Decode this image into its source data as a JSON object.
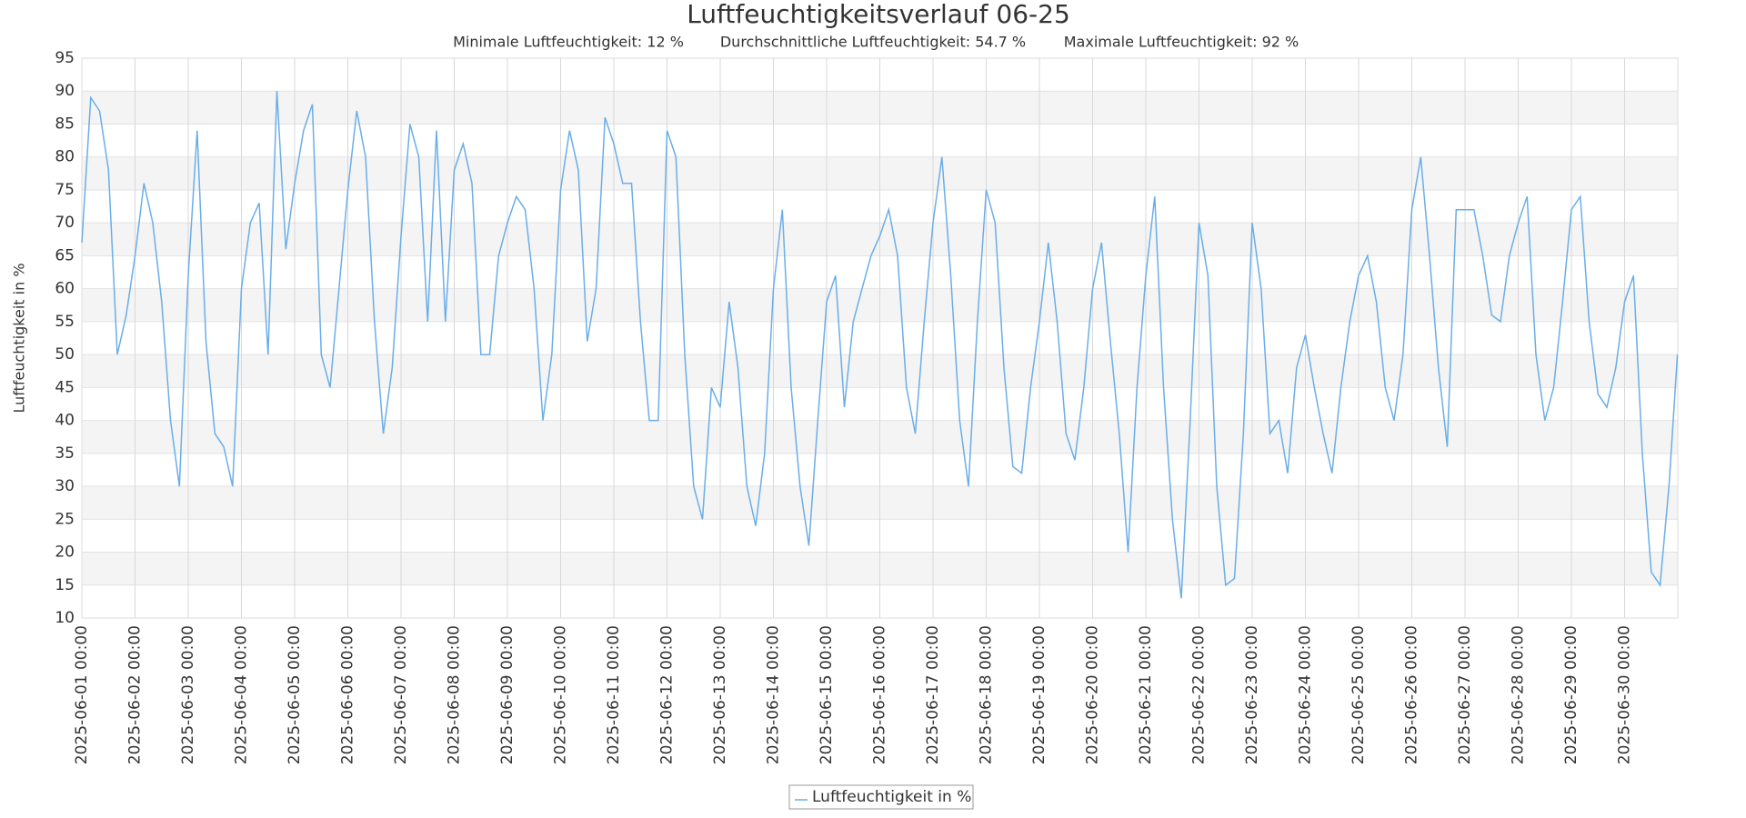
{
  "chart_data": {
    "type": "line",
    "title": "Luftfeuchtigkeitsverlauf 06-25",
    "subtitle": [
      "Minimale Luftfeuchtigkeit: 12 %",
      "Durchschnittliche Luftfeuchtigkeit: 54.7 %",
      "Maximale Luftfeuchtigkeit: 92 %"
    ],
    "y_label": "Luftfeuchtigkeit in %",
    "x": [
      "2025-06-01 00:00",
      "2025-06-01 04:00",
      "2025-06-01 08:00",
      "2025-06-01 12:00",
      "2025-06-01 16:00",
      "2025-06-01 20:00",
      "2025-06-02 00:00",
      "2025-06-02 04:00",
      "2025-06-02 08:00",
      "2025-06-02 12:00",
      "2025-06-02 16:00",
      "2025-06-02 20:00",
      "2025-06-03 00:00",
      "2025-06-03 04:00",
      "2025-06-03 08:00",
      "2025-06-03 12:00",
      "2025-06-03 16:00",
      "2025-06-03 20:00",
      "2025-06-04 00:00",
      "2025-06-04 04:00",
      "2025-06-04 08:00",
      "2025-06-04 12:00",
      "2025-06-04 16:00",
      "2025-06-04 20:00",
      "2025-06-05 00:00",
      "2025-06-05 04:00",
      "2025-06-05 08:00",
      "2025-06-05 12:00",
      "2025-06-05 16:00",
      "2025-06-05 20:00",
      "2025-06-06 00:00",
      "2025-06-06 04:00",
      "2025-06-06 08:00",
      "2025-06-06 12:00",
      "2025-06-06 16:00",
      "2025-06-06 20:00",
      "2025-06-07 00:00",
      "2025-06-07 04:00",
      "2025-06-07 08:00",
      "2025-06-07 12:00",
      "2025-06-07 16:00",
      "2025-06-07 20:00",
      "2025-06-08 00:00",
      "2025-06-08 04:00",
      "2025-06-08 08:00",
      "2025-06-08 12:00",
      "2025-06-08 16:00",
      "2025-06-08 20:00",
      "2025-06-09 00:00",
      "2025-06-09 04:00",
      "2025-06-09 08:00",
      "2025-06-09 12:00",
      "2025-06-09 16:00",
      "2025-06-09 20:00",
      "2025-06-10 00:00",
      "2025-06-10 04:00",
      "2025-06-10 08:00",
      "2025-06-10 12:00",
      "2025-06-10 16:00",
      "2025-06-10 20:00",
      "2025-06-11 00:00",
      "2025-06-11 04:00",
      "2025-06-11 08:00",
      "2025-06-11 12:00",
      "2025-06-11 16:00",
      "2025-06-11 20:00",
      "2025-06-12 00:00",
      "2025-06-12 04:00",
      "2025-06-12 08:00",
      "2025-06-12 12:00",
      "2025-06-12 16:00",
      "2025-06-12 20:00",
      "2025-06-13 00:00",
      "2025-06-13 04:00",
      "2025-06-13 08:00",
      "2025-06-13 12:00",
      "2025-06-13 16:00",
      "2025-06-13 20:00",
      "2025-06-14 00:00",
      "2025-06-14 04:00",
      "2025-06-14 08:00",
      "2025-06-14 12:00",
      "2025-06-14 16:00",
      "2025-06-14 20:00",
      "2025-06-15 00:00",
      "2025-06-15 04:00",
      "2025-06-15 08:00",
      "2025-06-15 12:00",
      "2025-06-15 16:00",
      "2025-06-15 20:00",
      "2025-06-16 00:00",
      "2025-06-16 04:00",
      "2025-06-16 08:00",
      "2025-06-16 12:00",
      "2025-06-16 16:00",
      "2025-06-16 20:00",
      "2025-06-17 00:00",
      "2025-06-17 04:00",
      "2025-06-17 08:00",
      "2025-06-17 12:00",
      "2025-06-17 16:00",
      "2025-06-17 20:00",
      "2025-06-18 00:00",
      "2025-06-18 04:00",
      "2025-06-18 08:00",
      "2025-06-18 12:00",
      "2025-06-18 16:00",
      "2025-06-18 20:00",
      "2025-06-19 00:00",
      "2025-06-19 04:00",
      "2025-06-19 08:00",
      "2025-06-19 12:00",
      "2025-06-19 16:00",
      "2025-06-19 20:00",
      "2025-06-20 00:00",
      "2025-06-20 04:00",
      "2025-06-20 08:00",
      "2025-06-20 12:00",
      "2025-06-20 16:00",
      "2025-06-20 20:00",
      "2025-06-21 00:00",
      "2025-06-21 04:00",
      "2025-06-21 08:00",
      "2025-06-21 12:00",
      "2025-06-21 16:00",
      "2025-06-21 20:00",
      "2025-06-22 00:00",
      "2025-06-22 04:00",
      "2025-06-22 08:00",
      "2025-06-22 12:00",
      "2025-06-22 16:00",
      "2025-06-22 20:00",
      "2025-06-23 00:00",
      "2025-06-23 04:00",
      "2025-06-23 08:00",
      "2025-06-23 12:00",
      "2025-06-23 16:00",
      "2025-06-23 20:00",
      "2025-06-24 00:00",
      "2025-06-24 04:00",
      "2025-06-24 08:00",
      "2025-06-24 12:00",
      "2025-06-24 16:00",
      "2025-06-24 20:00",
      "2025-06-25 00:00",
      "2025-06-25 04:00",
      "2025-06-25 08:00",
      "2025-06-25 12:00",
      "2025-06-25 16:00",
      "2025-06-25 20:00",
      "2025-06-26 00:00",
      "2025-06-26 04:00",
      "2025-06-26 08:00",
      "2025-06-26 12:00",
      "2025-06-26 16:00",
      "2025-06-26 20:00",
      "2025-06-27 00:00",
      "2025-06-27 04:00",
      "2025-06-27 08:00",
      "2025-06-27 12:00",
      "2025-06-27 16:00",
      "2025-06-27 20:00",
      "2025-06-28 00:00",
      "2025-06-28 04:00",
      "2025-06-28 08:00",
      "2025-06-28 12:00",
      "2025-06-28 16:00",
      "2025-06-28 20:00",
      "2025-06-29 00:00",
      "2025-06-29 04:00",
      "2025-06-29 08:00",
      "2025-06-29 12:00",
      "2025-06-29 16:00",
      "2025-06-29 20:00",
      "2025-06-30 00:00",
      "2025-06-30 04:00",
      "2025-06-30 08:00",
      "2025-06-30 12:00",
      "2025-06-30 16:00",
      "2025-06-30 20:00",
      "2025-06-30 23:50"
    ],
    "series": [
      {
        "name": "Luftfeuchtigkeit in %",
        "color": "#6aaee8",
        "values": [
          67,
          89,
          87,
          78,
          50,
          56,
          65,
          76,
          70,
          58,
          40,
          30,
          62,
          84,
          52,
          38,
          36,
          30,
          60,
          70,
          73,
          50,
          90,
          66,
          76,
          84,
          88,
          50,
          45,
          60,
          75,
          87,
          80,
          55,
          38,
          48,
          68,
          85,
          80,
          55,
          84,
          55,
          78,
          82,
          76,
          50,
          50,
          65,
          70,
          74,
          72,
          60,
          40,
          50,
          75,
          84,
          78,
          52,
          60,
          86,
          82,
          76,
          76,
          55,
          40,
          40,
          84,
          80,
          50,
          30,
          25,
          45,
          42,
          58,
          48,
          30,
          24,
          35,
          60,
          72,
          45,
          30,
          21,
          40,
          58,
          62,
          42,
          55,
          60,
          65,
          68,
          72,
          65,
          45,
          38,
          55,
          70,
          80,
          62,
          40,
          30,
          55,
          75,
          70,
          48,
          33,
          32,
          45,
          55,
          67,
          55,
          38,
          34,
          45,
          60,
          67,
          52,
          38,
          20,
          45,
          62,
          74,
          45,
          25,
          13,
          40,
          70,
          62,
          30,
          15,
          16,
          38,
          70,
          60,
          38,
          40,
          32,
          48,
          53,
          45,
          38,
          32,
          45,
          55,
          62,
          65,
          58,
          45,
          40,
          50,
          72,
          80,
          65,
          48,
          36,
          72,
          72,
          72,
          65,
          56,
          55,
          65,
          70,
          74,
          50,
          40,
          45,
          58,
          72,
          74,
          55,
          44,
          42,
          48,
          58,
          62,
          35,
          17,
          15,
          30,
          50
        ]
      }
    ],
    "xlim": [
      "2025-06-01 00:00",
      "2025-07-01 00:00"
    ],
    "xticks": [
      "2025-06-01 00:00",
      "2025-06-02 00:00",
      "2025-06-03 00:00",
      "2025-06-04 00:00",
      "2025-06-05 00:00",
      "2025-06-06 00:00",
      "2025-06-07 00:00",
      "2025-06-08 00:00",
      "2025-06-09 00:00",
      "2025-06-10 00:00",
      "2025-06-11 00:00",
      "2025-06-12 00:00",
      "2025-06-13 00:00",
      "2025-06-14 00:00",
      "2025-06-15 00:00",
      "2025-06-16 00:00",
      "2025-06-17 00:00",
      "2025-06-18 00:00",
      "2025-06-19 00:00",
      "2025-06-20 00:00",
      "2025-06-21 00:00",
      "2025-06-22 00:00",
      "2025-06-23 00:00",
      "2025-06-24 00:00",
      "2025-06-25 00:00",
      "2025-06-26 00:00",
      "2025-06-27 00:00",
      "2025-06-28 00:00",
      "2025-06-29 00:00",
      "2025-06-30 00:00"
    ],
    "ylim": [
      10,
      95
    ],
    "yticks": [
      10,
      15,
      20,
      25,
      30,
      35,
      40,
      45,
      50,
      55,
      60,
      65,
      70,
      75,
      80,
      85,
      90,
      95
    ],
    "grid": true,
    "bands": true,
    "legend": "bottom"
  }
}
